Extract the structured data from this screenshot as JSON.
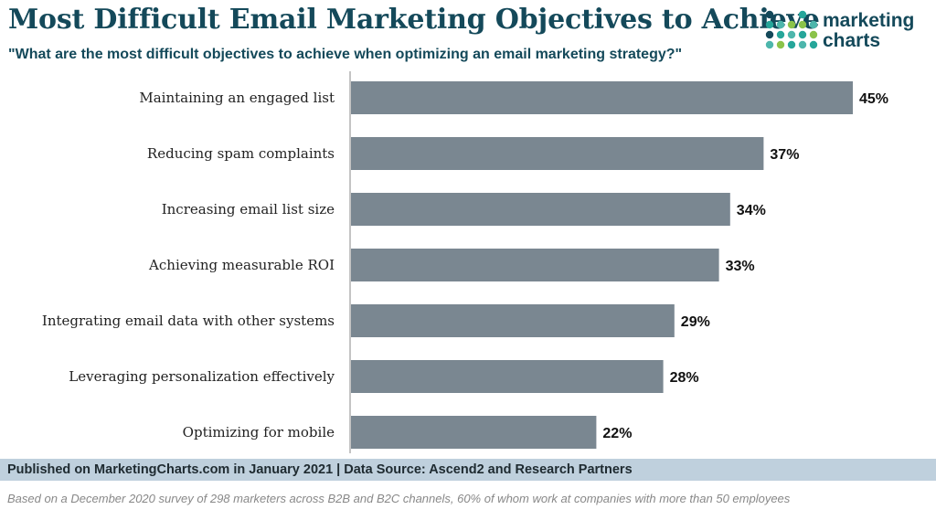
{
  "header": {
    "title": "Most Difficult Email Marketing Objectives to Achieve",
    "subtitle": "\"What are the most difficult objectives to achieve when optimizing an email marketing strategy?\""
  },
  "logo": {
    "line1": "marketing",
    "line2": "charts",
    "colors": [
      "#8bc34a",
      "#4db6ac",
      "#26a69a",
      "#14495a"
    ]
  },
  "chart_data": {
    "type": "bar",
    "orientation": "horizontal",
    "categories": [
      "Maintaining an engaged list",
      "Reducing spam complaints",
      "Increasing email list size",
      "Achieving measurable ROI",
      "Integrating email data with other systems",
      "Leveraging personalization effectively",
      "Optimizing for mobile"
    ],
    "values": [
      45,
      37,
      34,
      33,
      29,
      28,
      22
    ],
    "value_labels": [
      "45%",
      "37%",
      "34%",
      "33%",
      "29%",
      "28%",
      "22%"
    ],
    "bar_color": "#7a8791",
    "xlim": [
      0,
      50
    ],
    "grid": false
  },
  "footer": {
    "published": "Published on MarketingCharts.com in January 2021 | Data Source: Ascend2 and Research Partners",
    "note": "Based on a December 2020 survey of 298 marketers across B2B and B2C channels, 60% of whom work at companies with more than 50 employees"
  }
}
